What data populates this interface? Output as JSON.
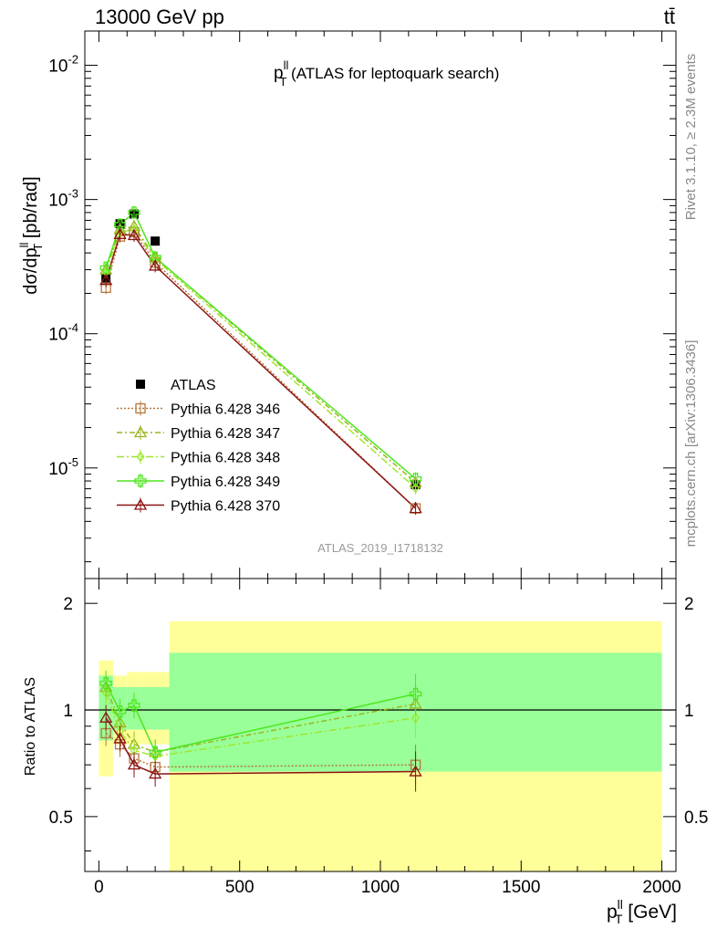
{
  "header": {
    "left": "13000 GeV pp",
    "right": "tt̄"
  },
  "plot_title": {
    "main": "p",
    "sup": "ll",
    "sub": "T",
    "rest": " (ATLAS for leptoquark search)"
  },
  "side_labels": {
    "rivet": "Rivet 3.1.10, ≥ 2.3M events",
    "mcplots": "mcplots.cern.ch [arXiv:1306.3436]"
  },
  "watermark": "ATLAS_2019_I1718132",
  "axes": {
    "ylabel_main": "dσ/dp",
    "ylabel_main_sup": "ll",
    "ylabel_main_sub": "T",
    "ylabel_main_rest": " [pb/rad]",
    "ylabel_ratio": "Ratio to ATLAS",
    "xlabel": "p",
    "xlabel_sup": "ll",
    "xlabel_sub": "T",
    "xlabel_rest": " [GeV]",
    "ytick_main": [
      {
        "base": "10",
        "exp": "-2",
        "value": 0.01
      },
      {
        "base": "10",
        "exp": "-3",
        "value": 0.001
      },
      {
        "base": "10",
        "exp": "-4",
        "value": 0.0001
      },
      {
        "base": "10",
        "exp": "-5",
        "value": 1e-05
      }
    ],
    "ytick_ratio": [
      {
        "label": "0.5",
        "value": 0.5
      },
      {
        "label": "1",
        "value": 1
      },
      {
        "label": "2",
        "value": 2
      }
    ],
    "xtick": [
      {
        "label": "0",
        "value": 0
      },
      {
        "label": "500",
        "value": 500
      },
      {
        "label": "1000",
        "value": 1000
      },
      {
        "label": "1500",
        "value": 1500
      },
      {
        "label": "2000",
        "value": 2000
      }
    ]
  },
  "legend": [
    {
      "label": "ATLAS",
      "color": "#000000",
      "marker": "square-filled",
      "dash": ""
    },
    {
      "label": "Pythia 6.428 346",
      "color": "#b5773c",
      "marker": "square-open",
      "dash": "2,2"
    },
    {
      "label": "Pythia 6.428 347",
      "color": "#9ab51e",
      "marker": "triangle-open",
      "dash": "6,3,2,3"
    },
    {
      "label": "Pythia 6.428 348",
      "color": "#9ee62e",
      "marker": "diamond-open",
      "dash": "8,3,2,3"
    },
    {
      "label": "Pythia 6.428 349",
      "color": "#4ee61e",
      "marker": "cross-open",
      "dash": ""
    },
    {
      "label": "Pythia 6.428 370",
      "color": "#8b1414",
      "marker": "triangle-open",
      "dash": ""
    }
  ],
  "chart_data": {
    "type": "line",
    "x_scale": "linear",
    "y_scale": "log",
    "xlim": [
      -50,
      2050
    ],
    "ylim_main": [
      1.5e-06,
      0.018
    ],
    "ylim_ratio": [
      0.35,
      2.35
    ],
    "x": [
      25,
      75,
      125,
      200,
      1125
    ],
    "data": {
      "name": "ATLAS",
      "values": [
        0.00026,
        0.00066,
        0.00078,
        0.00049,
        7.5e-06
      ]
    },
    "series": [
      {
        "name": "Pythia 6.428 346",
        "values": [
          0.00022,
          0.00053,
          0.00057,
          0.00034,
          5e-06
        ]
      },
      {
        "name": "Pythia 6.428 347",
        "values": [
          0.0003,
          0.0006,
          0.00063,
          0.00037,
          7.8e-06
        ]
      },
      {
        "name": "Pythia 6.428 348",
        "values": [
          0.00029,
          0.00057,
          0.0006,
          0.00036,
          7.1e-06
        ]
      },
      {
        "name": "Pythia 6.428 349",
        "values": [
          0.00031,
          0.00065,
          0.0008,
          0.00037,
          8.3e-06
        ]
      },
      {
        "name": "Pythia 6.428 370",
        "values": [
          0.00025,
          0.00055,
          0.00054,
          0.00032,
          5e-06
        ]
      }
    ],
    "ratio": {
      "bins": [
        [
          0,
          50
        ],
        [
          50,
          100
        ],
        [
          100,
          150
        ],
        [
          150,
          250
        ],
        [
          250,
          2000
        ]
      ],
      "band_inner": [
        [
          0.82,
          1.25
        ],
        [
          0.88,
          1.16
        ],
        [
          0.88,
          1.16
        ],
        [
          0.88,
          1.16
        ],
        [
          0.67,
          1.45
        ]
      ],
      "band_outer": [
        [
          0.65,
          1.38
        ],
        [
          0.8,
          1.25
        ],
        [
          0.8,
          1.28
        ],
        [
          0.8,
          1.28
        ],
        [
          0.35,
          1.78
        ]
      ],
      "series": [
        {
          "name": "Pythia 6.428 346",
          "values": [
            0.86,
            0.8,
            0.73,
            0.69,
            0.7
          ]
        },
        {
          "name": "Pythia 6.428 347",
          "values": [
            1.16,
            0.92,
            0.8,
            0.76,
            1.04
          ]
        },
        {
          "name": "Pythia 6.428 348",
          "values": [
            1.12,
            0.87,
            0.77,
            0.74,
            0.95
          ]
        },
        {
          "name": "Pythia 6.428 349",
          "values": [
            1.19,
            0.99,
            1.03,
            0.76,
            1.11
          ]
        },
        {
          "name": "Pythia 6.428 370",
          "values": [
            0.95,
            0.83,
            0.7,
            0.66,
            0.67
          ]
        }
      ]
    }
  }
}
